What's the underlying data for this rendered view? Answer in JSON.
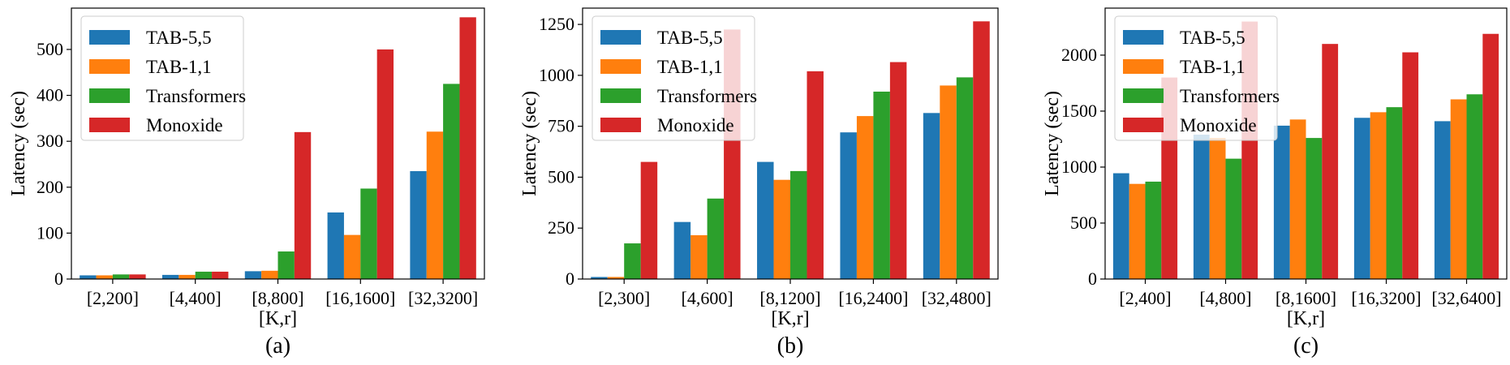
{
  "series_colors": [
    "#1f77b4",
    "#ff7f0e",
    "#2ca02c",
    "#d62728"
  ],
  "chart_data": [
    {
      "type": "bar",
      "caption": "(a)",
      "xlabel": "[K,r]",
      "ylabel": "Latency (sec)",
      "categories": [
        "[2,200]",
        "[4,400]",
        "[8,800]",
        "[16,1600]",
        "[32,3200]"
      ],
      "ylim": [
        0,
        590
      ],
      "yticks": [
        0,
        100,
        200,
        300,
        400,
        500
      ],
      "legend_position": "upper-left",
      "series": [
        {
          "name": "TAB-5,5",
          "values": [
            8,
            9,
            17,
            145,
            235
          ]
        },
        {
          "name": "TAB-1,1",
          "values": [
            8,
            9,
            18,
            96,
            321
          ]
        },
        {
          "name": "Transformers",
          "values": [
            10,
            16,
            60,
            197,
            425
          ]
        },
        {
          "name": "Monoxide",
          "values": [
            10,
            16,
            320,
            500,
            570
          ]
        }
      ]
    },
    {
      "type": "bar",
      "caption": "(b)",
      "xlabel": "[K,r]",
      "ylabel": "Latency (sec)",
      "categories": [
        "[2,300]",
        "[4,600]",
        "[8,1200]",
        "[16,2400]",
        "[32,4800]"
      ],
      "ylim": [
        0,
        1330
      ],
      "yticks": [
        0,
        250,
        500,
        750,
        1000,
        1250
      ],
      "legend_position": "upper-left",
      "series": [
        {
          "name": "TAB-5,5",
          "values": [
            10,
            280,
            575,
            720,
            815
          ]
        },
        {
          "name": "TAB-1,1",
          "values": [
            10,
            215,
            487,
            800,
            950
          ]
        },
        {
          "name": "Transformers",
          "values": [
            175,
            395,
            530,
            920,
            990
          ]
        },
        {
          "name": "Monoxide",
          "values": [
            575,
            1225,
            1020,
            1065,
            1265
          ]
        }
      ]
    },
    {
      "type": "bar",
      "caption": "(c)",
      "xlabel": "[K,r]",
      "ylabel": "Latency (sec)",
      "categories": [
        "[2,400]",
        "[4,800]",
        "[8,1600]",
        "[16,3200]",
        "[32,6400]"
      ],
      "ylim": [
        0,
        2420
      ],
      "yticks": [
        0,
        500,
        1000,
        1500,
        2000
      ],
      "legend_position": "upper-left",
      "series": [
        {
          "name": "TAB-5,5",
          "values": [
            945,
            1290,
            1370,
            1440,
            1410
          ]
        },
        {
          "name": "TAB-1,1",
          "values": [
            850,
            1260,
            1425,
            1490,
            1605
          ]
        },
        {
          "name": "Transformers",
          "values": [
            870,
            1075,
            1260,
            1535,
            1650
          ]
        },
        {
          "name": "Monoxide",
          "values": [
            1800,
            2300,
            2100,
            2025,
            2190
          ]
        }
      ]
    }
  ]
}
